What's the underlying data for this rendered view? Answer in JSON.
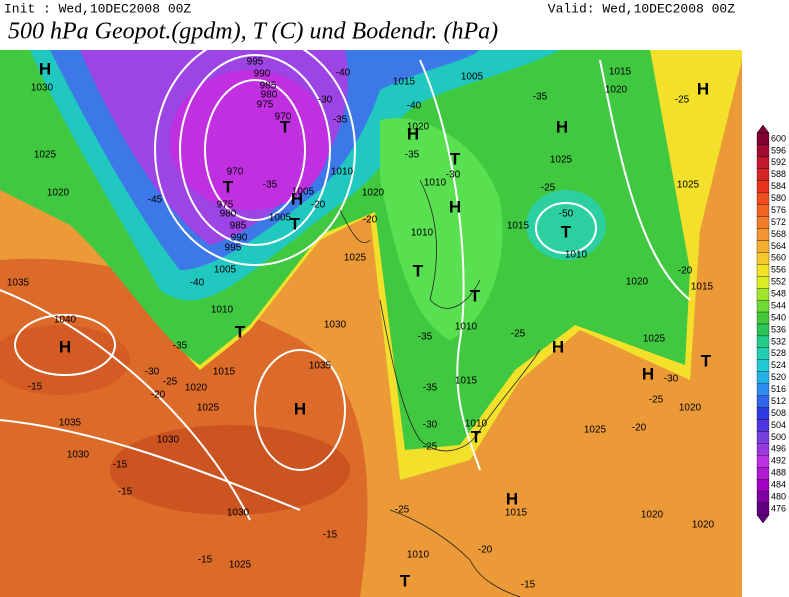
{
  "header": {
    "init": "Init : Wed,10DEC2008 00Z",
    "valid": "Valid: Wed,10DEC2008 00Z",
    "title": "500 hPa Geopot.(gpdm), T (C) und Bodendr. (hPa)"
  },
  "colorbar": {
    "values": [
      600,
      596,
      592,
      588,
      584,
      580,
      576,
      572,
      568,
      564,
      560,
      556,
      552,
      548,
      544,
      540,
      536,
      532,
      528,
      524,
      520,
      516,
      512,
      508,
      504,
      500,
      496,
      492,
      488,
      484,
      480,
      476
    ]
  },
  "map_labels": [
    "H",
    "1030",
    "1025",
    "1020",
    "H",
    "1040",
    "1035",
    "-15",
    "1035",
    "1030",
    "1030",
    "-15",
    "-15",
    "H",
    "1035",
    "1030",
    "1030",
    "1025",
    "-15",
    "-15",
    "T",
    "1010",
    "1015",
    "1020",
    "1025",
    "-35",
    "-30",
    "-25",
    "-20",
    "1005",
    "-40",
    "T",
    "T",
    "995",
    "990",
    "985",
    "980",
    "975",
    "970",
    "970",
    "975",
    "980",
    "985",
    "990",
    "995",
    "-45",
    "-35",
    "H",
    "T",
    "1005",
    "1005",
    "-20",
    "1010",
    "1020",
    "-20",
    "1025",
    "-40",
    "-30",
    "-35",
    "1015",
    "-40",
    "1020",
    "H",
    "-35",
    "T",
    "1010",
    "-30",
    "H",
    "1010",
    "T",
    "T",
    "1010",
    "-35",
    "1015",
    "-35",
    "-30",
    "1010",
    "T",
    "-25",
    "1005",
    "-50",
    "T",
    "1015",
    "1010",
    "1025",
    "H",
    "-35",
    "-25",
    "1015",
    "1020",
    "-25",
    "H",
    "1025",
    "-20",
    "1015",
    "1020",
    "-25",
    "H",
    "1025",
    "H",
    "-30",
    "T",
    "1020",
    "-25",
    "1025",
    "-20",
    "H",
    "1015",
    "1020",
    "1020",
    "-25",
    "1010",
    "-20",
    "T",
    "-15"
  ]
}
